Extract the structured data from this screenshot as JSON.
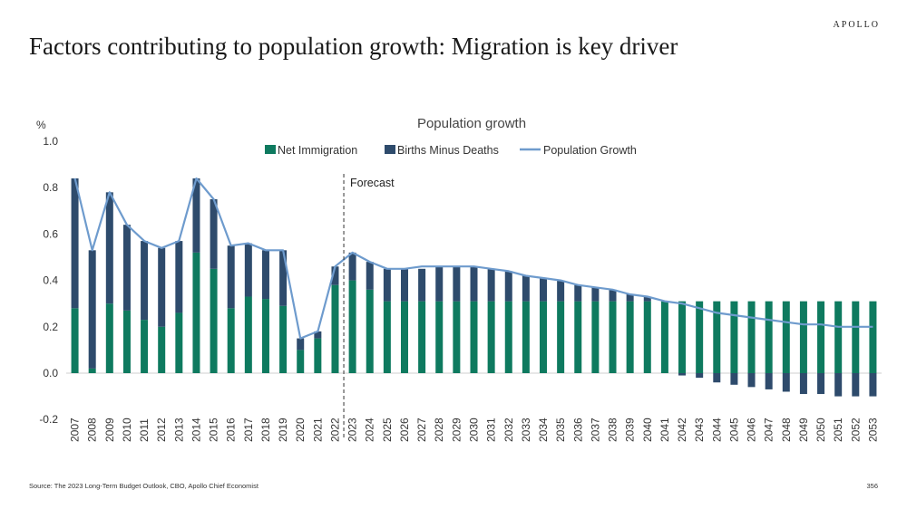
{
  "brand": "APOLLO",
  "title": "Factors contributing to population growth: Migration is key driver",
  "source": "Source: The 2023 Long-Term Budget Outlook, CBO, Apollo Chief Economist",
  "page_number": "356",
  "colors": {
    "immigration": "#0e7a5f",
    "births": "#2e4b6c",
    "population": "#6e9bcd"
  },
  "chart_data": {
    "type": "bar",
    "title": "Population growth",
    "ylabel": "%",
    "ylim": [
      -0.2,
      1.0
    ],
    "yticks": [
      "1.0",
      "0.8",
      "0.6",
      "0.4",
      "0.2",
      "0.0",
      "-0.2"
    ],
    "forecast_label": "Forecast",
    "forecast_start": "2023",
    "legend_position": "top-center",
    "categories": [
      "2007",
      "2008",
      "2009",
      "2010",
      "2011",
      "2012",
      "2013",
      "2014",
      "2015",
      "2016",
      "2017",
      "2018",
      "2019",
      "2020",
      "2021",
      "2022",
      "2023",
      "2024",
      "2025",
      "2026",
      "2027",
      "2028",
      "2029",
      "2030",
      "2031",
      "2032",
      "2033",
      "2034",
      "2035",
      "2036",
      "2037",
      "2038",
      "2039",
      "2040",
      "2041",
      "2042",
      "2043",
      "2044",
      "2045",
      "2046",
      "2047",
      "2048",
      "2049",
      "2050",
      "2051",
      "2052",
      "2053"
    ],
    "series": [
      {
        "name": "Net Immigration",
        "kind": "bar",
        "values": [
          0.28,
          0.02,
          0.3,
          0.27,
          0.23,
          0.2,
          0.26,
          0.52,
          0.45,
          0.28,
          0.33,
          0.32,
          0.29,
          0.1,
          0.15,
          0.38,
          0.4,
          0.36,
          0.31,
          0.31,
          0.31,
          0.31,
          0.31,
          0.31,
          0.31,
          0.31,
          0.31,
          0.31,
          0.31,
          0.31,
          0.31,
          0.31,
          0.31,
          0.31,
          0.31,
          0.31,
          0.31,
          0.31,
          0.31,
          0.31,
          0.31,
          0.31,
          0.31,
          0.31,
          0.31,
          0.31,
          0.31
        ]
      },
      {
        "name": "Births Minus Deaths",
        "kind": "bar",
        "values": [
          0.56,
          0.51,
          0.48,
          0.37,
          0.34,
          0.34,
          0.31,
          0.32,
          0.3,
          0.27,
          0.23,
          0.21,
          0.24,
          0.05,
          0.03,
          0.08,
          0.12,
          0.12,
          0.14,
          0.14,
          0.14,
          0.15,
          0.15,
          0.15,
          0.14,
          0.13,
          0.11,
          0.1,
          0.09,
          0.07,
          0.06,
          0.05,
          0.03,
          0.02,
          0.0,
          -0.01,
          -0.02,
          -0.04,
          -0.05,
          -0.06,
          -0.07,
          -0.08,
          -0.09,
          -0.09,
          -0.1,
          -0.1,
          -0.1
        ]
      },
      {
        "name": "Population Growth",
        "kind": "line",
        "values": [
          0.84,
          0.53,
          0.78,
          0.64,
          0.57,
          0.54,
          0.57,
          0.84,
          0.75,
          0.55,
          0.56,
          0.53,
          0.53,
          0.15,
          0.18,
          0.46,
          0.52,
          0.48,
          0.45,
          0.45,
          0.46,
          0.46,
          0.46,
          0.46,
          0.45,
          0.44,
          0.42,
          0.41,
          0.4,
          0.38,
          0.37,
          0.36,
          0.34,
          0.33,
          0.31,
          0.3,
          0.28,
          0.26,
          0.25,
          0.24,
          0.23,
          0.22,
          0.21,
          0.21,
          0.2,
          0.2,
          0.2
        ]
      }
    ]
  }
}
